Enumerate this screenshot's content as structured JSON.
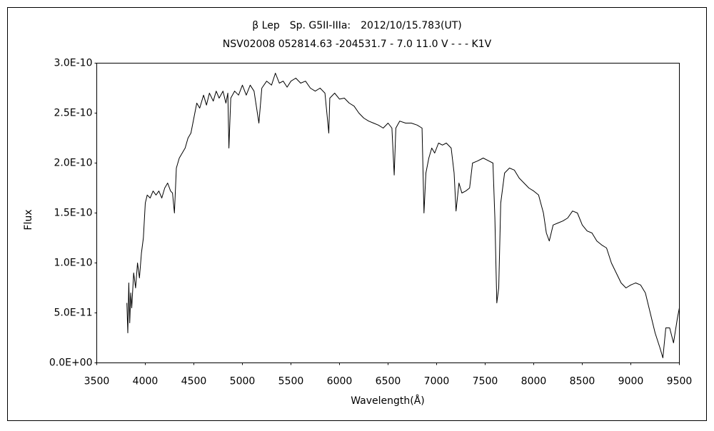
{
  "chart_data": {
    "type": "line",
    "title": "β Lep　Sp. G5II-IIIa:　2012/10/15.783(UT)",
    "subtitle": "NSV02008 052814.63 -204531.7 - 7.0 11.0 V - - - K1V",
    "x_label": "Wavelength(Å)",
    "y_label": "Flux",
    "xlim": [
      3500,
      9500
    ],
    "xticks": [
      3500,
      4000,
      4500,
      5000,
      5500,
      6000,
      6500,
      7000,
      7500,
      8000,
      8500,
      9000,
      9500
    ],
    "ylim": [
      0,
      3e-10
    ],
    "yticks": [
      {
        "value": 0,
        "label": "0.0E+00"
      },
      {
        "value": 5e-11,
        "label": "5.0E-11"
      },
      {
        "value": 1e-10,
        "label": "1.0E-10"
      },
      {
        "value": 1.5e-10,
        "label": "1.5E-10"
      },
      {
        "value": 2e-10,
        "label": "2.0E-10"
      },
      {
        "value": 2.5e-10,
        "label": "2.5E-10"
      },
      {
        "value": 3e-10,
        "label": "3.0E-10"
      }
    ],
    "grid": false,
    "series": [
      {
        "name": "Flux",
        "color": "#000000",
        "x": [
          3810,
          3820,
          3830,
          3840,
          3850,
          3860,
          3880,
          3900,
          3920,
          3940,
          3960,
          3980,
          4000,
          4020,
          4050,
          4080,
          4110,
          4140,
          4170,
          4200,
          4230,
          4260,
          4280,
          4300,
          4320,
          4350,
          4380,
          4410,
          4440,
          4470,
          4500,
          4530,
          4560,
          4600,
          4630,
          4660,
          4700,
          4730,
          4760,
          4800,
          4830,
          4850,
          4861,
          4880,
          4920,
          4960,
          5000,
          5040,
          5080,
          5120,
          5170,
          5200,
          5250,
          5300,
          5340,
          5380,
          5420,
          5460,
          5500,
          5550,
          5600,
          5650,
          5700,
          5750,
          5800,
          5850,
          5890,
          5900,
          5950,
          6000,
          6050,
          6100,
          6150,
          6200,
          6250,
          6300,
          6350,
          6400,
          6450,
          6500,
          6540,
          6563,
          6580,
          6620,
          6680,
          6740,
          6800,
          6850,
          6870,
          6890,
          6920,
          6950,
          6980,
          7020,
          7060,
          7100,
          7150,
          7180,
          7200,
          7230,
          7260,
          7300,
          7340,
          7370,
          7420,
          7480,
          7540,
          7580,
          7600,
          7620,
          7640,
          7660,
          7700,
          7750,
          7800,
          7850,
          7900,
          7950,
          8000,
          8050,
          8100,
          8130,
          8160,
          8200,
          8250,
          8300,
          8350,
          8400,
          8450,
          8500,
          8550,
          8600,
          8650,
          8700,
          8750,
          8800,
          8850,
          8900,
          8950,
          9000,
          9050,
          9100,
          9150,
          9200,
          9250,
          9300,
          9330,
          9360,
          9400,
          9440,
          9480,
          9500
        ],
        "values": [
          6e-11,
          3e-11,
          8e-11,
          4e-11,
          7e-11,
          5.5e-11,
          9e-11,
          7.5e-11,
          1e-10,
          8.5e-11,
          1.1e-10,
          1.25e-10,
          1.6e-10,
          1.68e-10,
          1.65e-10,
          1.72e-10,
          1.68e-10,
          1.72e-10,
          1.65e-10,
          1.75e-10,
          1.8e-10,
          1.72e-10,
          1.7e-10,
          1.5e-10,
          1.95e-10,
          2.05e-10,
          2.1e-10,
          2.15e-10,
          2.25e-10,
          2.3e-10,
          2.45e-10,
          2.6e-10,
          2.55e-10,
          2.68e-10,
          2.58e-10,
          2.7e-10,
          2.62e-10,
          2.72e-10,
          2.65e-10,
          2.72e-10,
          2.6e-10,
          2.7e-10,
          2.15e-10,
          2.65e-10,
          2.72e-10,
          2.68e-10,
          2.78e-10,
          2.68e-10,
          2.78e-10,
          2.72e-10,
          2.4e-10,
          2.75e-10,
          2.82e-10,
          2.78e-10,
          2.9e-10,
          2.8e-10,
          2.82e-10,
          2.76e-10,
          2.82e-10,
          2.85e-10,
          2.8e-10,
          2.82e-10,
          2.75e-10,
          2.72e-10,
          2.75e-10,
          2.7e-10,
          2.3e-10,
          2.65e-10,
          2.7e-10,
          2.64e-10,
          2.65e-10,
          2.6e-10,
          2.57e-10,
          2.5e-10,
          2.45e-10,
          2.42e-10,
          2.4e-10,
          2.38e-10,
          2.35e-10,
          2.4e-10,
          2.35e-10,
          1.88e-10,
          2.35e-10,
          2.42e-10,
          2.4e-10,
          2.4e-10,
          2.38e-10,
          2.35e-10,
          1.5e-10,
          1.9e-10,
          2.05e-10,
          2.15e-10,
          2.1e-10,
          2.2e-10,
          2.18e-10,
          2.2e-10,
          2.15e-10,
          1.9e-10,
          1.52e-10,
          1.8e-10,
          1.7e-10,
          1.72e-10,
          1.75e-10,
          2e-10,
          2.02e-10,
          2.05e-10,
          2.02e-10,
          2e-10,
          1.45e-10,
          6e-11,
          7.5e-11,
          1.6e-10,
          1.9e-10,
          1.95e-10,
          1.93e-10,
          1.85e-10,
          1.8e-10,
          1.75e-10,
          1.72e-10,
          1.68e-10,
          1.5e-10,
          1.3e-10,
          1.22e-10,
          1.38e-10,
          1.4e-10,
          1.42e-10,
          1.45e-10,
          1.52e-10,
          1.5e-10,
          1.38e-10,
          1.32e-10,
          1.3e-10,
          1.22e-10,
          1.18e-10,
          1.15e-10,
          1e-10,
          9e-11,
          8e-11,
          7.5e-11,
          7.8e-11,
          8e-11,
          7.8e-11,
          7e-11,
          5e-11,
          3e-11,
          1.5e-11,
          5e-12,
          3.5e-11,
          3.5e-11,
          2e-11,
          4.5e-11,
          5.5e-11
        ]
      }
    ]
  }
}
